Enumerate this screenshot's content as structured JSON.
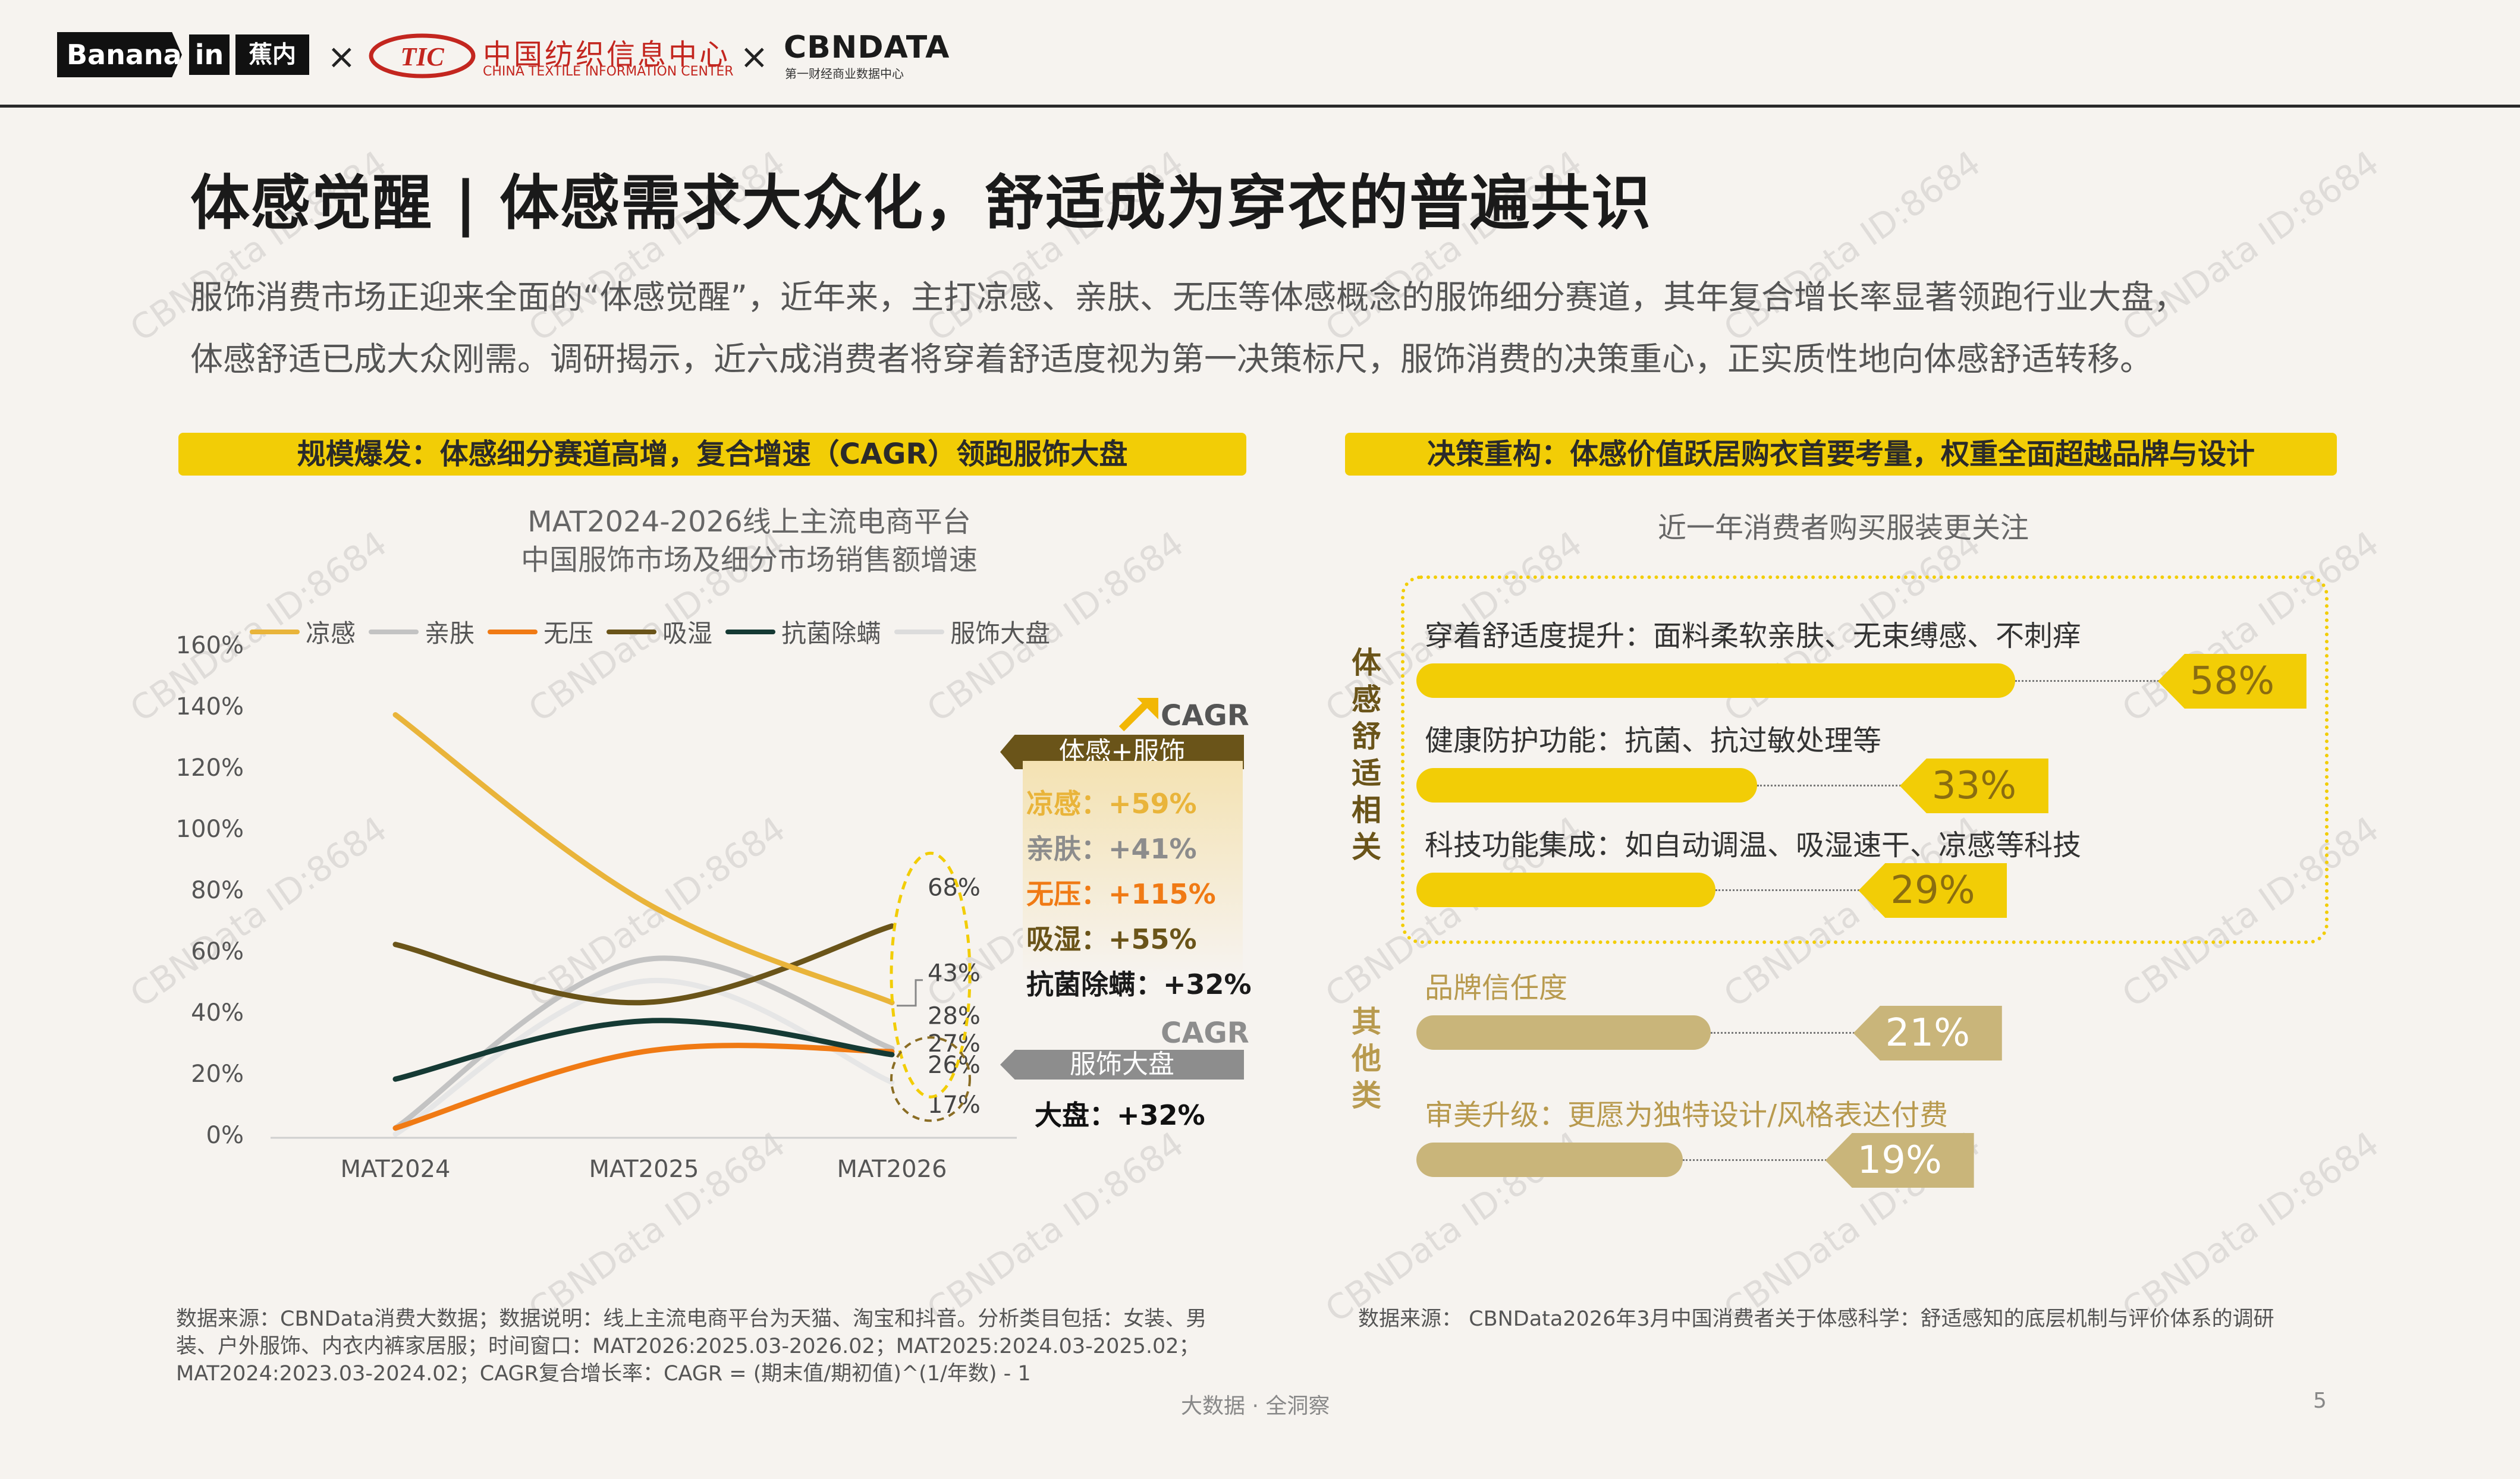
{
  "header": {
    "brand_banana": "Banana",
    "brand_in": "in",
    "brand_jiaonei": "蕉内",
    "cross": "×",
    "ctic_cn": "中国纺织信息中心",
    "ctic_en": "CHINA TEXTILE INFORMATION CENTER",
    "cbn_main": "CBNDATA",
    "cbn_sub": "第一财经商业数据中心"
  },
  "title": "体感觉醒 | 体感需求大众化，舒适成为穿衣的普遍共识",
  "intro": {
    "line1": "服饰消费市场正迎来全面的“体感觉醒”，近年来，主打凉感、亲肤、无压等体感概念的服饰细分赛道，其年复合增长率显著领跑行业大盘，",
    "line2": "体感舒适已成大众刚需。调研揭示，近六成消费者将穿着舒适度视为第一决策标尺，服饰消费的决策重心，正实质性地向体感舒适转移。"
  },
  "left": {
    "banner": "规模爆发：体感细分赛道高增，复合增速（CAGR）领跑服饰大盘",
    "cagr_title": "CAGR",
    "cagr_tag": "体感+服饰",
    "cagr_items": [
      {
        "label": "凉感：+59%",
        "color": "#e9b43a"
      },
      {
        "label": "亲肤：+41%",
        "color": "#8c8c8c"
      },
      {
        "label": "无压：+115%",
        "color": "#f07a14"
      },
      {
        "label": "吸湿：+55%",
        "color": "#6a5419"
      },
      {
        "label": "抗菌除螨：+32%",
        "color": "#1a1a1a"
      }
    ],
    "cagr_title2": "CAGR",
    "market_tag": "服饰大盘",
    "market_value": "大盘：+32%"
  },
  "chart_data": [
    {
      "type": "line",
      "title": "MAT2024-2026线上主流电商平台 中国服饰市场及细分市场销售额增速",
      "title_line1": "MAT2024-2026线上主流电商平台",
      "title_line2": "中国服饰市场及细分市场销售额增速",
      "categories": [
        "MAT2024",
        "MAT2025",
        "MAT2026"
      ],
      "y_ticks": [
        "160%",
        "140%",
        "120%",
        "100%",
        "80%",
        "60%",
        "40%",
        "20%",
        "0%"
      ],
      "ylim": [
        0,
        160
      ],
      "legend_position": "top",
      "series": [
        {
          "name": "凉感",
          "color": "#e9b43a",
          "values": [
            137,
            76,
            43
          ]
        },
        {
          "name": "亲肤",
          "color": "#c3c3c3",
          "values": [
            2,
            57,
            28
          ]
        },
        {
          "name": "无压",
          "color": "#f07a14",
          "values": [
            2,
            27,
            27
          ]
        },
        {
          "name": "吸湿",
          "color": "#6a5419",
          "values": [
            62,
            43,
            68
          ]
        },
        {
          "name": "抗菌除螨",
          "color": "#153a34",
          "values": [
            18,
            37,
            26
          ]
        },
        {
          "name": "服饰大盘",
          "color": "#e6e6e6",
          "values": [
            0,
            50,
            17
          ]
        }
      ],
      "end_labels": [
        "68%",
        "43%",
        "28%",
        "27%",
        "26%",
        "17%"
      ]
    },
    {
      "type": "bar",
      "title": "近一年消费者购买服装更关注",
      "groups": [
        {
          "name": "体感舒适相关",
          "chars": [
            "体",
            "感",
            "舒",
            "适",
            "相",
            "关"
          ]
        },
        {
          "name": "其他类",
          "chars": [
            "其",
            "他",
            "类"
          ]
        }
      ],
      "categories": [
        "穿着舒适度提升：面料柔软亲肤、无束缚感、不刺痒",
        "健康防护功能：抗菌、抗过敏处理等",
        "科技功能集成：如自动调温、吸湿速干、凉感等科技",
        "品牌信任度",
        "审美升级：更愿为独特设计/风格表达付费"
      ],
      "values": [
        58,
        33,
        29,
        21,
        19
      ],
      "value_labels": [
        "58%",
        "33%",
        "29%",
        "21%",
        "19%"
      ],
      "colors": {
        "comfort": "#f2cd06",
        "other": "#c9b57a"
      }
    }
  ],
  "right": {
    "banner": "决策重构：体感价值跃居购衣首要考量，权重全面超越品牌与设计"
  },
  "footnotes": {
    "left_line1": "数据来源：CBNData消费大数据；数据说明：线上主流电商平台为天猫、淘宝和抖音。分析类目包括：女装、男",
    "left_line2": "装、户外服饰、内衣内裤家居服；时间窗口：MAT2026:2025.03-2026.02；MAT2025:2024.03-2025.02；",
    "left_line3": "MAT2024:2023.03-2024.02；CAGR复合增长率：CAGR = (期末值/期初值)^(1/年数) - 1",
    "right": "数据来源： CBNData2026年3月中国消费者关于体感科学：舒适感知的底层机制与评价体系的调研"
  },
  "footer": {
    "center": "大数据 · 全洞察",
    "page": "5"
  },
  "watermark": "CBNData ID:8684"
}
